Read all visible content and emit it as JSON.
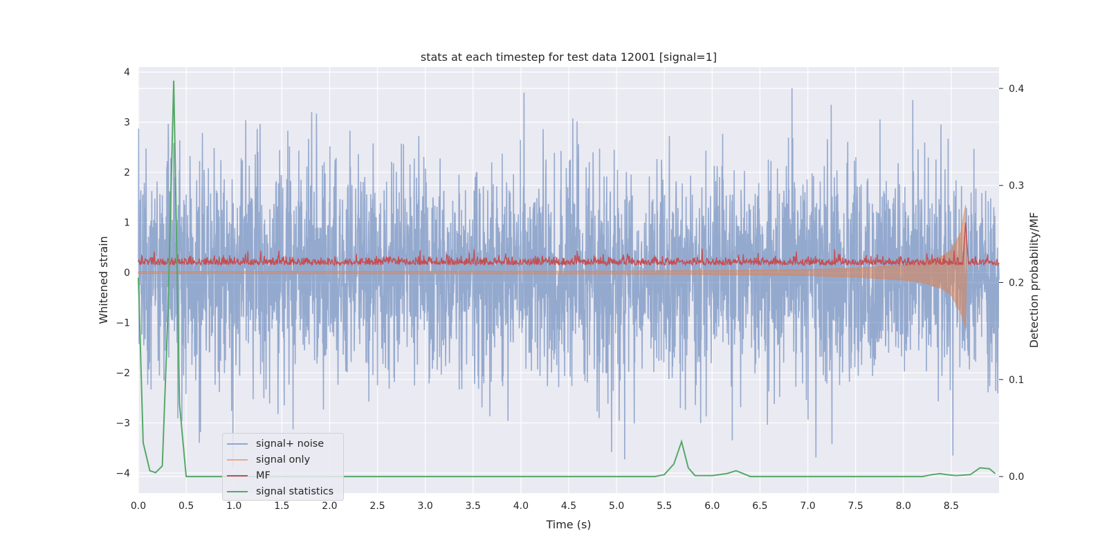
{
  "chart_data": {
    "type": "line",
    "title": "stats at each timestep for test data 12001 [signal=1]",
    "xlabel": "Time (s)",
    "ylabel": "Whitened strain",
    "ylabel_right": "Detection probability/MF",
    "xlim": [
      0.0,
      9.0
    ],
    "ylim": [
      -4.4,
      4.1
    ],
    "ylim_right": [
      -0.017,
      0.422
    ],
    "x_ticks": [
      "0.0",
      "0.5",
      "1.0",
      "1.5",
      "2.0",
      "2.5",
      "3.0",
      "3.5",
      "4.0",
      "4.5",
      "5.0",
      "5.5",
      "6.0",
      "6.5",
      "7.0",
      "7.5",
      "8.0",
      "8.5"
    ],
    "y_ticks": [
      "4",
      "3",
      "2",
      "1",
      "0",
      "−1",
      "−2",
      "−3",
      "−4"
    ],
    "y_ticks_right": [
      "0.4",
      "0.3",
      "0.2",
      "0.1",
      "0.0"
    ],
    "grid": true,
    "legend_position": "lower-left",
    "series": [
      {
        "name": "signal+ noise",
        "axis": "left",
        "color": "#4c72b0",
        "description": "dense whitened noise, approx. zero mean, std ~1, peaks reaching about +3.7 and -4.0",
        "envelope": {
          "x": [
            0.0,
            9.0
          ],
          "upper": [
            2.4,
            2.4
          ],
          "lower": [
            -2.4,
            -2.4
          ]
        }
      },
      {
        "name": "signal only",
        "axis": "left",
        "color": "#dd8452",
        "x": [
          0.0,
          5.0,
          6.0,
          7.0,
          7.5,
          8.0,
          8.2,
          8.4,
          8.5,
          8.6,
          8.65,
          8.66
        ],
        "upper": [
          0.02,
          0.03,
          0.04,
          0.06,
          0.09,
          0.15,
          0.2,
          0.32,
          0.45,
          0.8,
          1.35,
          0.0
        ],
        "lower": [
          -0.02,
          -0.03,
          -0.04,
          -0.06,
          -0.09,
          -0.15,
          -0.2,
          -0.32,
          -0.45,
          -0.8,
          -1.1,
          0.0
        ]
      },
      {
        "name": "MF",
        "axis": "left",
        "color": "#c44e52",
        "description": "matched filter output around 0.1-0.3, peak ~1.0 at t=8.65",
        "baseline": 0.15,
        "peak": {
          "x": 8.65,
          "y": 1.0
        }
      },
      {
        "name": "signal statistics",
        "axis": "right",
        "color": "#55a868",
        "x": [
          0.0,
          0.05,
          0.12,
          0.18,
          0.25,
          0.31,
          0.37,
          0.43,
          0.5,
          1.0,
          2.0,
          3.0,
          4.0,
          5.0,
          5.4,
          5.5,
          5.6,
          5.68,
          5.75,
          5.82,
          6.0,
          6.15,
          6.25,
          6.4,
          7.0,
          7.5,
          8.0,
          8.2,
          8.3,
          8.38,
          8.45,
          8.55,
          8.7,
          8.8,
          8.9,
          8.96
        ],
        "y": [
          0.205,
          0.035,
          0.006,
          0.004,
          0.011,
          0.17,
          0.408,
          0.075,
          0.0,
          0.0,
          0.0,
          0.0,
          0.0,
          0.0,
          0.0,
          0.002,
          0.013,
          0.036,
          0.009,
          0.001,
          0.001,
          0.003,
          0.006,
          0.0,
          0.0,
          0.0,
          0.0,
          0.0,
          0.002,
          0.003,
          0.002,
          0.001,
          0.002,
          0.009,
          0.008,
          0.003
        ]
      }
    ]
  }
}
